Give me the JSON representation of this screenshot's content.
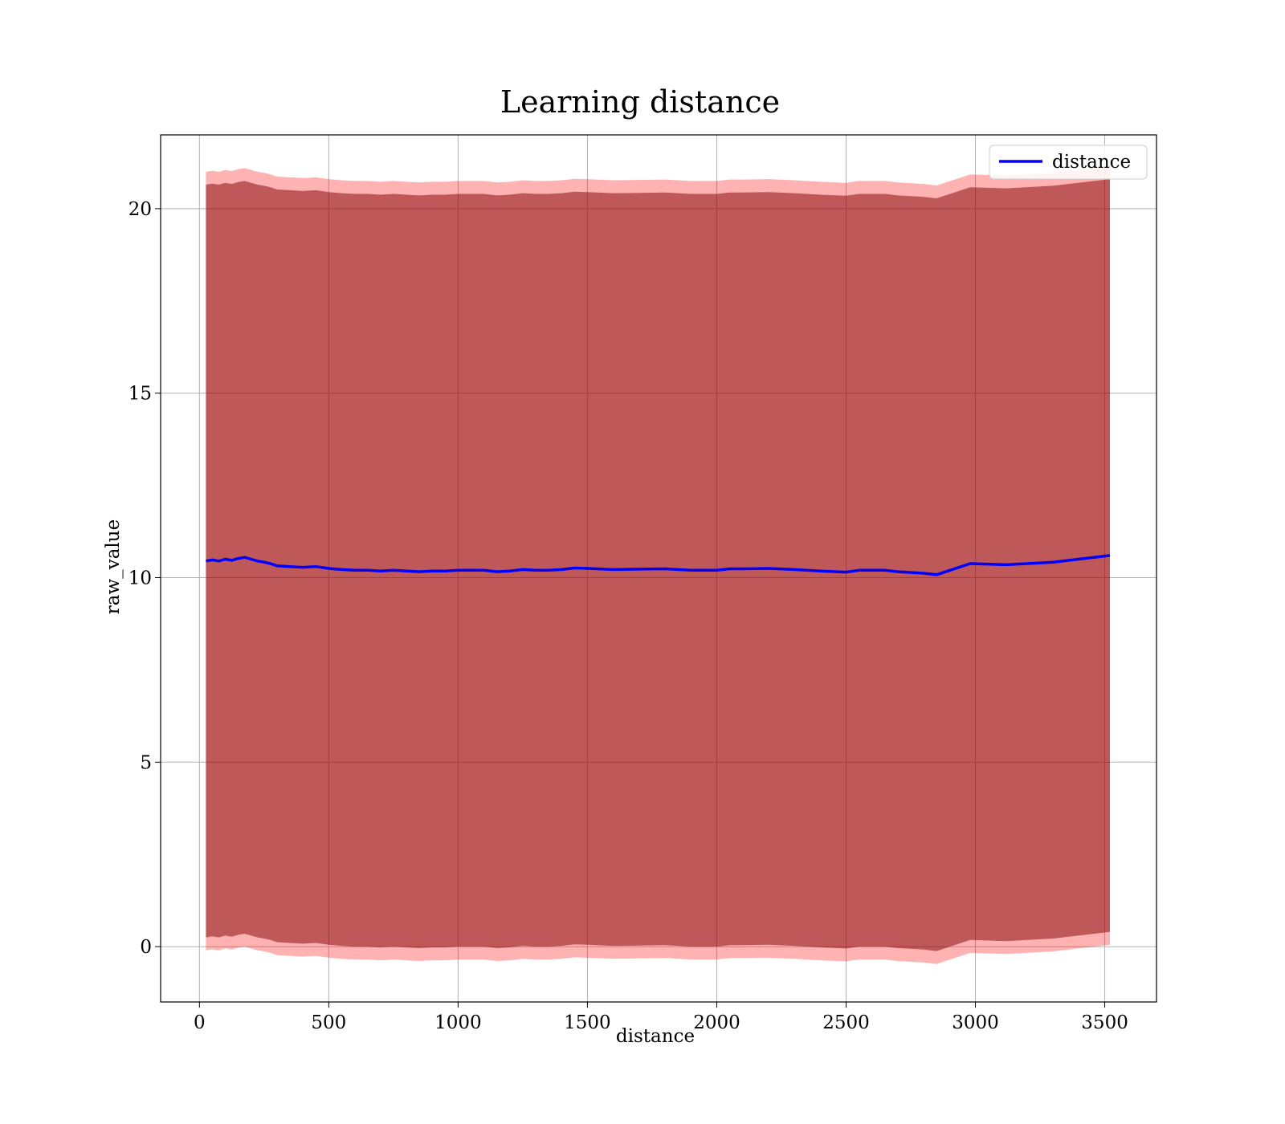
{
  "chart_data": {
    "type": "line",
    "title": "Learning distance",
    "xlabel": "distance",
    "ylabel": "raw_value",
    "xlim": [
      -150,
      3700
    ],
    "ylim": [
      -1.5,
      22
    ],
    "xticks": [
      0,
      500,
      1000,
      1500,
      2000,
      2500,
      3000,
      3500
    ],
    "yticks": [
      0,
      5,
      10,
      15,
      20
    ],
    "grid": true,
    "legend_position": "upper-right",
    "colors": {
      "line": "#0000ff",
      "outer_band": "#ff0000",
      "inner_band": "#800000",
      "overlap": "#a1727a"
    },
    "x": [
      25,
      50,
      75,
      100,
      125,
      150,
      175,
      200,
      225,
      250,
      275,
      300,
      350,
      400,
      450,
      500,
      550,
      600,
      650,
      700,
      750,
      800,
      850,
      900,
      950,
      1000,
      1100,
      1150,
      1200,
      1250,
      1300,
      1350,
      1400,
      1450,
      1500,
      1600,
      1700,
      1800,
      1850,
      1900,
      2000,
      2050,
      2100,
      2200,
      2300,
      2400,
      2500,
      2550,
      2650,
      2700,
      2800,
      2850,
      2980,
      3120,
      3300,
      3520
    ],
    "series": [
      {
        "name": "distance",
        "values": [
          10.45,
          10.48,
          10.45,
          10.5,
          10.47,
          10.52,
          10.55,
          10.5,
          10.45,
          10.42,
          10.38,
          10.32,
          10.3,
          10.28,
          10.3,
          10.25,
          10.22,
          10.2,
          10.2,
          10.18,
          10.2,
          10.18,
          10.16,
          10.18,
          10.18,
          10.2,
          10.2,
          10.16,
          10.18,
          10.22,
          10.2,
          10.2,
          10.22,
          10.26,
          10.25,
          10.22,
          10.23,
          10.24,
          10.22,
          10.2,
          10.2,
          10.24,
          10.24,
          10.25,
          10.22,
          10.18,
          10.15,
          10.2,
          10.2,
          10.16,
          10.12,
          10.08,
          10.38,
          10.35,
          10.42,
          10.6
        ]
      }
    ],
    "bands": {
      "outer_half_width": 10.55,
      "inner_half_width": 10.2
    }
  }
}
